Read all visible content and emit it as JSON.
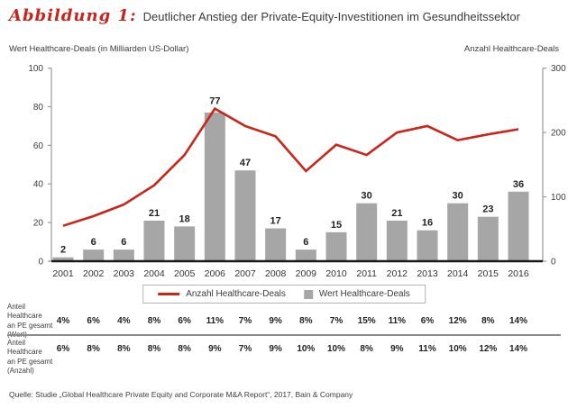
{
  "header": {
    "figure_label": "Abbildung 1:",
    "title": "Deutlicher Anstieg der Private-Equity-Investitionen im Gesundheitssektor",
    "accent_color": "#c8241c"
  },
  "axes": {
    "left_title": "Wert Healthcare-Deals (in Milliarden US-Dollar)",
    "right_title": "Anzahl Healthcare-Deals"
  },
  "legend": {
    "line_label": "Anzahl Healthcare-Deals",
    "bar_label": "Wert Healthcare-Deals"
  },
  "chart_data": {
    "type": "bar",
    "subtype": "bar+line dual axis",
    "categories": [
      "2001",
      "2002",
      "2003",
      "2004",
      "2005",
      "2006",
      "2007",
      "2008",
      "2009",
      "2010",
      "2011",
      "2012",
      "2013",
      "2014",
      "2015",
      "2016"
    ],
    "series": [
      {
        "name": "Wert Healthcare-Deals",
        "type": "bar",
        "axis": "left",
        "values": [
          2,
          6,
          6,
          21,
          18,
          77,
          47,
          17,
          6,
          15,
          30,
          21,
          16,
          30,
          23,
          36
        ]
      },
      {
        "name": "Anzahl Healthcare-Deals",
        "type": "line",
        "axis": "right",
        "values": [
          55,
          70,
          88,
          118,
          165,
          237,
          210,
          194,
          140,
          181,
          165,
          200,
          210,
          188,
          197,
          205
        ]
      }
    ],
    "left_axis": {
      "title": "Wert Healthcare-Deals (in Milliarden US-Dollar)",
      "ticks": [
        0,
        20,
        40,
        60,
        80,
        100
      ],
      "range": [
        0,
        100
      ]
    },
    "right_axis": {
      "title": "Anzahl Healthcare-Deals",
      "ticks": [
        0,
        100,
        200,
        300
      ],
      "range": [
        0,
        300
      ]
    },
    "grid": false,
    "legend_position": "bottom-center",
    "colors": {
      "bar": "#a6a6a6",
      "line": "#cc2418",
      "baseline": "#1a1a1a",
      "axis": "#9a9a9a"
    }
  },
  "table": {
    "rows": [
      {
        "label": "Anteil\nHealthcare\nan PE gesamt\n(Wert)",
        "values": [
          "4%",
          "6%",
          "4%",
          "8%",
          "6%",
          "11%",
          "7%",
          "9%",
          "8%",
          "7%",
          "15%",
          "11%",
          "6%",
          "12%",
          "8%",
          "14%"
        ]
      },
      {
        "label": "Anteil\nHealthcare\nan PE gesamt\n(Anzahl)",
        "values": [
          "6%",
          "8%",
          "8%",
          "8%",
          "8%",
          "9%",
          "7%",
          "9%",
          "10%",
          "10%",
          "8%",
          "9%",
          "11%",
          "10%",
          "12%",
          "14%"
        ]
      }
    ]
  },
  "source": "Quelle: Studie „Global Healthcare Private Equity and Corporate M&A Report“, 2017, Bain & Company"
}
